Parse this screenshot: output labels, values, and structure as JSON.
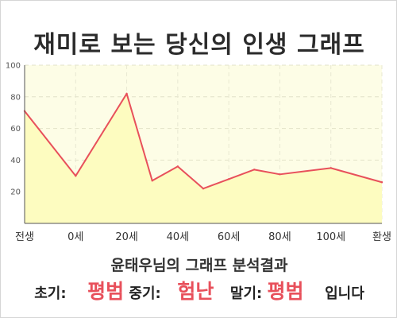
{
  "chart_data": {
    "type": "area",
    "title": "재미로 보는 당신의 인생 그래프",
    "x_labels": [
      "전생",
      "0세",
      "20세",
      "40세",
      "60세",
      "80세",
      "100세",
      "환생"
    ],
    "y_ticks": [
      20,
      40,
      60,
      80,
      100
    ],
    "ylim": [
      0,
      100
    ],
    "grid": true,
    "series": [
      {
        "color": "#e8505b",
        "fill": "#fdfcc0",
        "points": [
          {
            "x": "전생",
            "y": 71
          },
          {
            "x": "0세",
            "y": 30
          },
          {
            "x": "20세",
            "y": 82
          },
          {
            "x": "30세",
            "y": 27
          },
          {
            "x": "40세",
            "y": 36
          },
          {
            "x": "50세",
            "y": 22
          },
          {
            "x": "60세",
            "y": 28
          },
          {
            "x": "70세",
            "y": 34
          },
          {
            "x": "80세",
            "y": 31
          },
          {
            "x": "100세",
            "y": 35
          },
          {
            "x": "환생",
            "y": 26
          }
        ]
      }
    ]
  },
  "summary": {
    "title": "윤태우님의 그래프 분석결과",
    "early_label": "초기:",
    "early_value": "평범",
    "middle_label": "중기:",
    "middle_value": "험난",
    "late_label": "말기:",
    "late_value": "평범",
    "ending": "입니다"
  },
  "colors": {
    "accent": "#e8505b",
    "plot_bg": "#fdfde6",
    "area_fill": "#fdfcc0"
  }
}
